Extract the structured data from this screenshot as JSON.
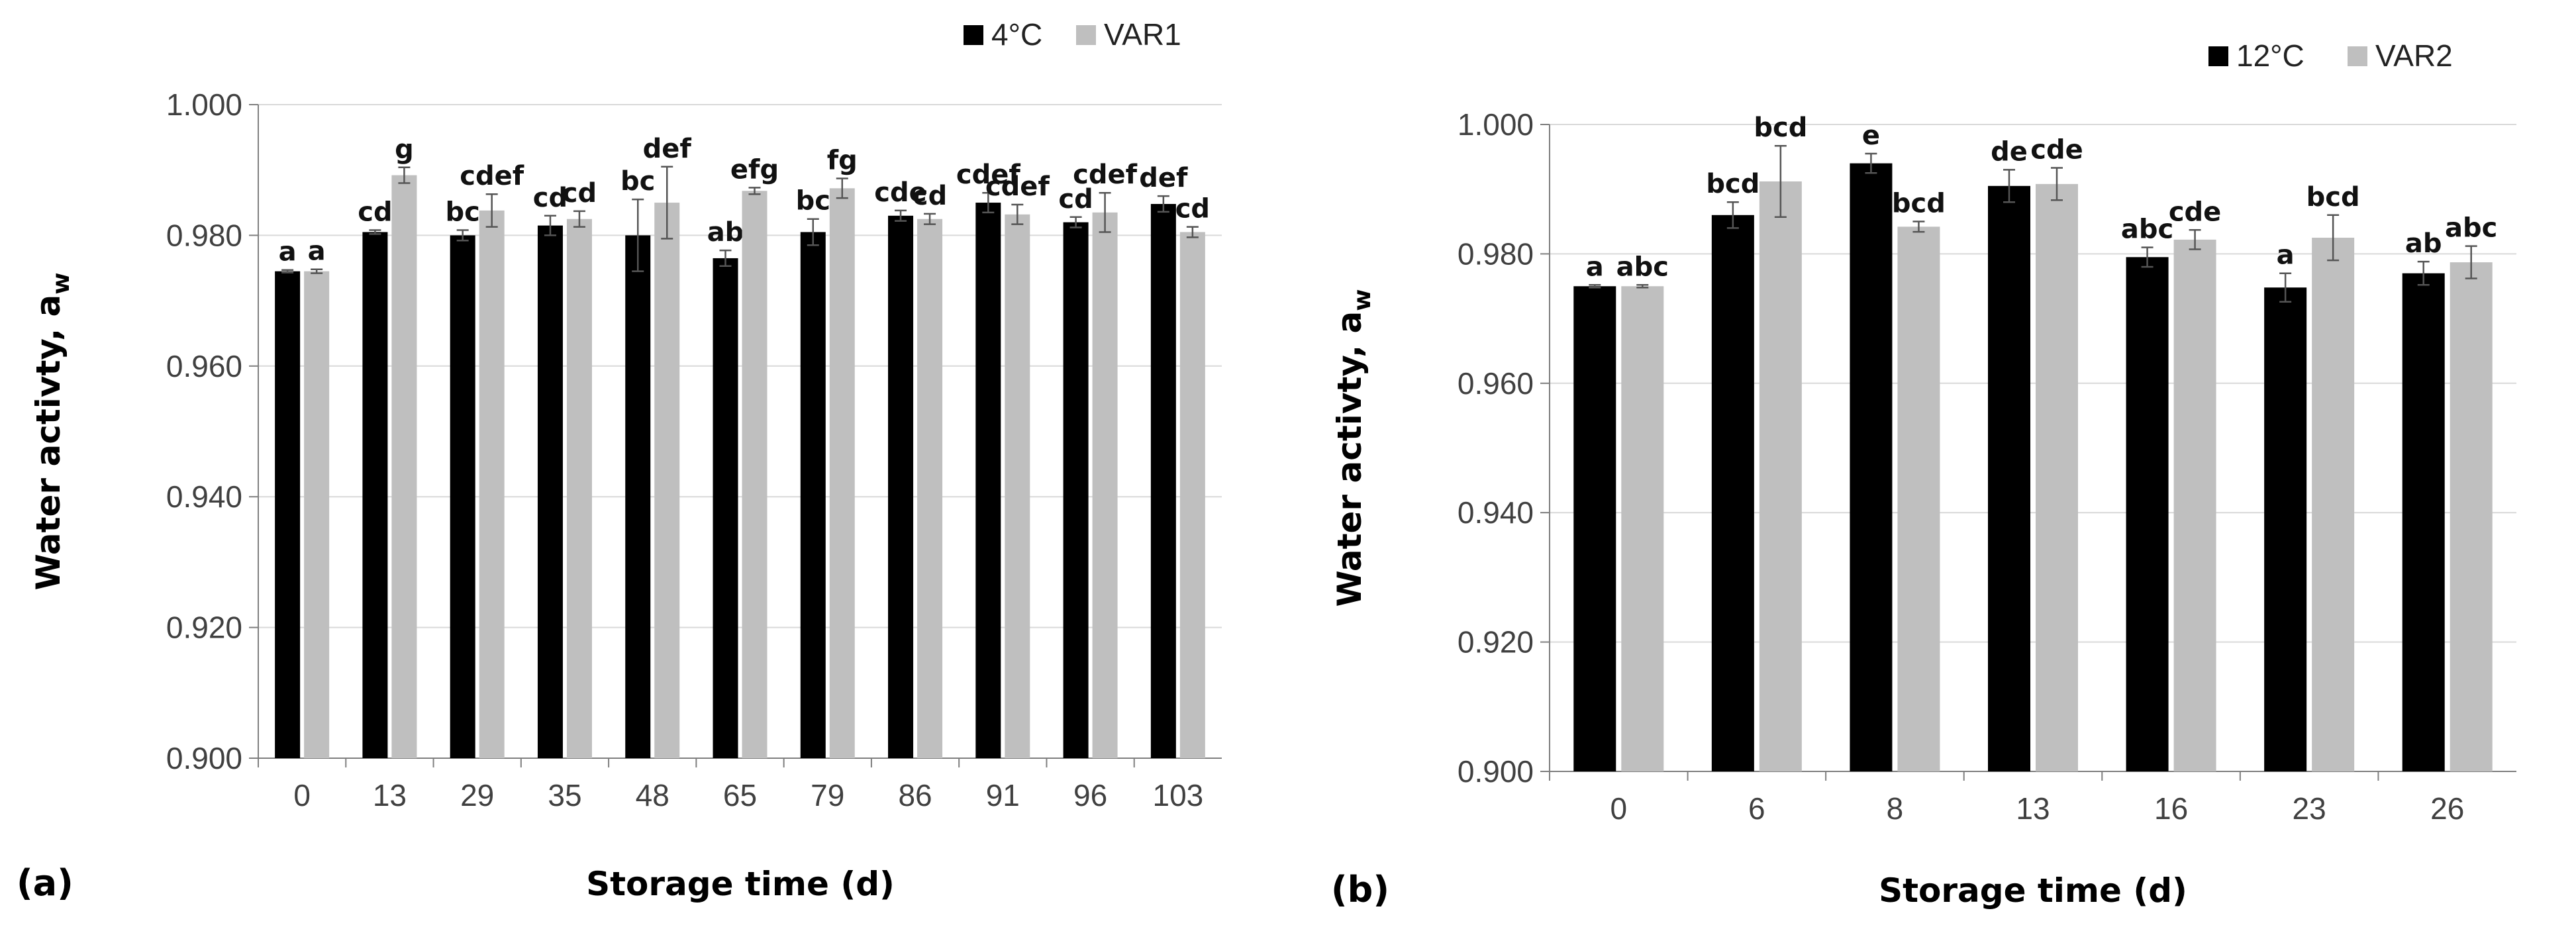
{
  "chart_data": [
    {
      "type": "bar",
      "panel_label": "(a)",
      "title": "",
      "xlabel": "Storage time (d)",
      "ylabel": "Water activty, a",
      "ylabel_sub": "w",
      "ylim": [
        0.9,
        1.0
      ],
      "yticks": [
        "0.900",
        "0.920",
        "0.940",
        "0.960",
        "0.980",
        "1.000"
      ],
      "ytick_values": [
        0.9,
        0.92,
        0.94,
        0.96,
        0.98,
        1.0
      ],
      "grid": true,
      "legend_position": "top-right",
      "categories": [
        "0",
        "13",
        "29",
        "35",
        "48",
        "65",
        "79",
        "86",
        "91",
        "96",
        "103"
      ],
      "series": [
        {
          "name": "4°C",
          "color": "#000000",
          "values": [
            0.9745,
            0.9805,
            0.98,
            0.9815,
            0.98,
            0.9765,
            0.9805,
            0.983,
            0.985,
            0.982,
            0.9848
          ],
          "errors": [
            0.0002,
            0.0003,
            0.0008,
            0.0015,
            0.0055,
            0.0012,
            0.002,
            0.0008,
            0.0015,
            0.0008,
            0.0012
          ],
          "labels": [
            "a",
            "cd",
            "bc",
            "cd",
            "bc",
            "ab",
            "bc",
            "cde",
            "cdef",
            "cd",
            "def"
          ]
        },
        {
          "name": "VAR1",
          "color": "#bfbfbf",
          "values": [
            0.9745,
            0.9892,
            0.9838,
            0.9825,
            0.985,
            0.9868,
            0.9872,
            0.9825,
            0.9832,
            0.9835,
            0.9805
          ],
          "errors": [
            0.0003,
            0.0012,
            0.0025,
            0.0012,
            0.0055,
            0.0005,
            0.0015,
            0.0008,
            0.0015,
            0.003,
            0.0008
          ],
          "labels": [
            "a",
            "g",
            "cdef",
            "cd",
            "def",
            "efg",
            "fg",
            "cd",
            "cdef",
            "cdef",
            "cd"
          ]
        }
      ]
    },
    {
      "type": "bar",
      "panel_label": "(b)",
      "title": "",
      "xlabel": "Storage time (d)",
      "ylabel": "Water activty, a",
      "ylabel_sub": "w",
      "ylim": [
        0.9,
        1.0
      ],
      "yticks": [
        "0.900",
        "0.920",
        "0.940",
        "0.960",
        "0.980",
        "1.000"
      ],
      "ytick_values": [
        0.9,
        0.92,
        0.94,
        0.96,
        0.98,
        1.0
      ],
      "grid": true,
      "legend_position": "top-right",
      "categories": [
        "0",
        "6",
        "8",
        "13",
        "16",
        "23",
        "26"
      ],
      "series": [
        {
          "name": "12°C",
          "color": "#000000",
          "values": [
            0.975,
            0.986,
            0.994,
            0.9905,
            0.9795,
            0.9748,
            0.977
          ],
          "errors": [
            0.0002,
            0.002,
            0.0015,
            0.0025,
            0.0015,
            0.0022,
            0.0018
          ],
          "labels": [
            "a",
            "bcd",
            "e",
            "de",
            "abc",
            "a",
            "ab"
          ]
        },
        {
          "name": "VAR2",
          "color": "#bfbfbf",
          "values": [
            0.975,
            0.9912,
            0.9842,
            0.9908,
            0.9822,
            0.9825,
            0.9787
          ],
          "errors": [
            0.0002,
            0.0055,
            0.0008,
            0.0025,
            0.0015,
            0.0035,
            0.0025
          ],
          "labels": [
            "abc",
            "bcd",
            "bcd",
            "cde",
            "cde",
            "bcd",
            "abc"
          ]
        }
      ]
    }
  ]
}
